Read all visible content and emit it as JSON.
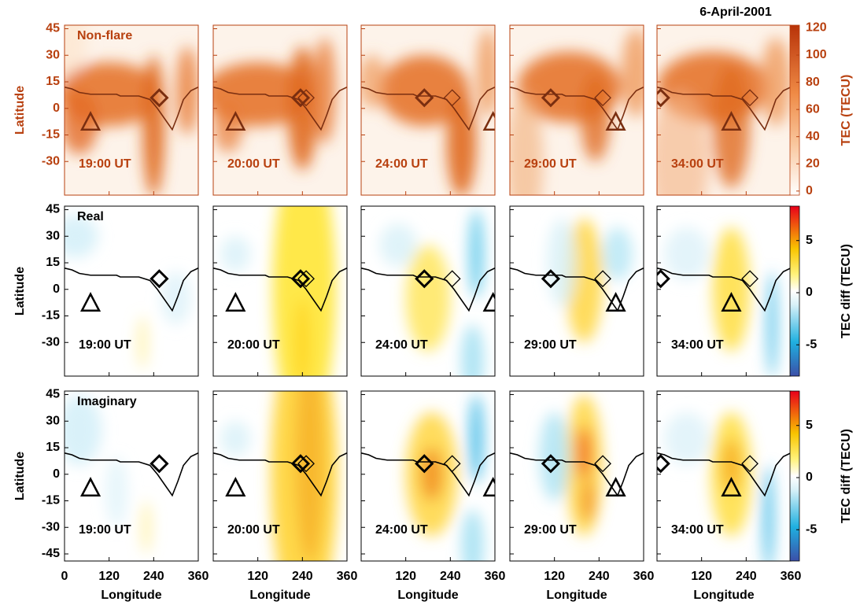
{
  "chart_data": {
    "type": "heatmap-grid",
    "title": "6-April-2001",
    "xlabel": "Longitude",
    "xlim": [
      0,
      360
    ],
    "xticks": [
      0,
      120,
      240,
      360
    ],
    "ylim": [
      -49,
      47
    ],
    "times": [
      "19:00 UT",
      "20:00 UT",
      "24:00 UT",
      "29:00 UT",
      "34:00 UT"
    ],
    "rows": [
      {
        "name": "Non-flare",
        "ylabel": "Latitude",
        "yticks": [
          -30,
          -15,
          0,
          15,
          30,
          45
        ],
        "colorbar_label": "TEC (TECU)",
        "clim": [
          -3,
          122
        ],
        "cticks": [
          0,
          20,
          40,
          60,
          80,
          100,
          120
        ]
      },
      {
        "name": "Real",
        "ylabel": "Latitude",
        "yticks": [
          -30,
          -15,
          0,
          15,
          30,
          45
        ],
        "colorbar_label": "TEC diff (TECU)",
        "clim": [
          -8,
          8.3
        ],
        "cticks": [
          -5,
          0,
          5
        ]
      },
      {
        "name": "Imaginary",
        "ylabel": "Latitude",
        "yticks": [
          -45,
          -30,
          -15,
          0,
          15,
          30,
          45
        ],
        "colorbar_label": "TEC diff (TECU)",
        "clim": [
          -8,
          8.3
        ],
        "cticks": [
          -5,
          0,
          5
        ]
      }
    ],
    "markers": [
      {
        "triangle": {
          "x": 70,
          "y": -8
        },
        "diamonds": [
          {
            "x": 255,
            "y": 6
          }
        ]
      },
      {
        "triangle": {
          "x": 60,
          "y": -8
        },
        "diamonds": [
          {
            "x": 235,
            "y": 6
          },
          {
            "x": 250,
            "y": 6
          }
        ]
      },
      {
        "triangle": {
          "x": 355,
          "y": -8
        },
        "diamonds": [
          {
            "x": 170,
            "y": 6
          },
          {
            "x": 245,
            "y": 6
          }
        ]
      },
      {
        "triangle": {
          "x": 285,
          "y": -8
        },
        "diamonds": [
          {
            "x": 110,
            "y": 6
          },
          {
            "x": 250,
            "y": 6
          }
        ]
      },
      {
        "triangle": {
          "x": 200,
          "y": -8
        },
        "diamonds": [
          {
            "x": 10,
            "y": 6
          },
          {
            "x": 250,
            "y": 6
          }
        ]
      }
    ]
  }
}
